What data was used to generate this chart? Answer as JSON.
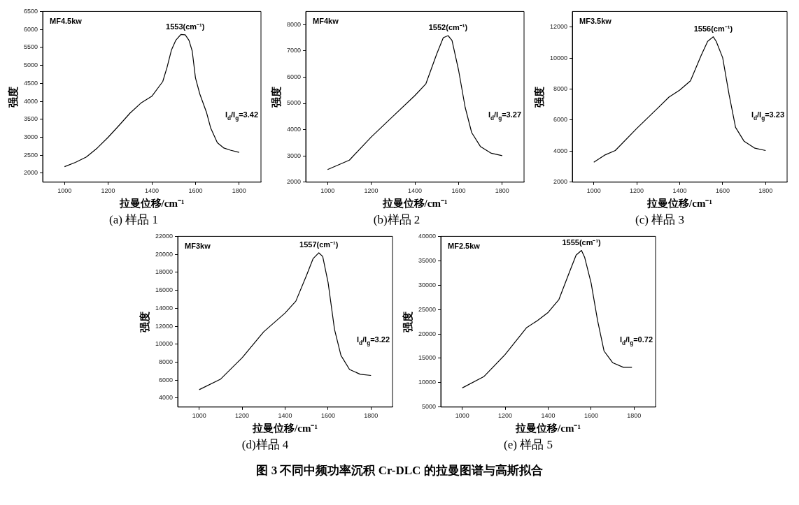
{
  "chart_data": [
    {
      "type": "line",
      "title": "(a) 样品 1",
      "xlabel": "拉曼位移/cm⁻¹",
      "ylabel": "强度",
      "color": "#000000",
      "marker": "none",
      "grid": false,
      "x": [
        1000,
        1050,
        1100,
        1150,
        1200,
        1250,
        1300,
        1350,
        1400,
        1450,
        1470,
        1490,
        1510,
        1533,
        1553,
        1570,
        1585,
        1600,
        1620,
        1650,
        1670,
        1700,
        1730,
        1760,
        1800
      ],
      "values": [
        2180,
        2300,
        2450,
        2700,
        3000,
        3330,
        3670,
        3950,
        4140,
        4550,
        4950,
        5430,
        5700,
        5860,
        5850,
        5700,
        5400,
        4650,
        4200,
        3700,
        3250,
        2850,
        2700,
        2640,
        2580
      ],
      "xlim": [
        900,
        1900
      ],
      "xticks": [
        1000,
        1200,
        1400,
        1600,
        1800
      ],
      "ylim": [
        1750,
        6500
      ],
      "yticks": [
        2000,
        2500,
        3000,
        3500,
        4000,
        4500,
        5000,
        5500,
        6000,
        6500
      ],
      "annotations": [
        "MF4.5kw",
        "I$_{d}$/I$_{g}$=3.42",
        {
          "text": "1553(cm⁻¹)",
          "x": 1553,
          "y": 5850
        }
      ]
    },
    {
      "type": "line",
      "title": "(b)样品 2",
      "xlabel": "拉曼位移/cm⁻¹",
      "ylabel": "强度",
      "color": "#000000",
      "marker": "none",
      "grid": false,
      "x": [
        1000,
        1100,
        1200,
        1300,
        1400,
        1450,
        1500,
        1530,
        1552,
        1570,
        1600,
        1630,
        1660,
        1700,
        1750,
        1800
      ],
      "values": [
        2480,
        2840,
        3720,
        4510,
        5300,
        5740,
        6880,
        7500,
        7580,
        7400,
        6270,
        4860,
        3890,
        3360,
        3100,
        3010
      ],
      "xlim": [
        900,
        1900
      ],
      "xticks": [
        1000,
        1200,
        1400,
        1600,
        1800
      ],
      "ylim": [
        2000,
        8500
      ],
      "yticks": [
        2000,
        3000,
        4000,
        5000,
        6000,
        7000,
        8000
      ],
      "annotations": [
        "MF4kw",
        "I$_{d}$/I$_{g}$=3.27",
        {
          "text": "1552(cm⁻¹)",
          "x": 1552,
          "y": 7580
        }
      ]
    },
    {
      "type": "line",
      "title": "(c) 样品 3",
      "xlabel": "拉曼位移/cm⁻¹",
      "ylabel": "强度",
      "color": "#000000",
      "marker": "none",
      "grid": false,
      "x": [
        1000,
        1050,
        1100,
        1200,
        1300,
        1350,
        1400,
        1450,
        1500,
        1530,
        1556,
        1570,
        1600,
        1630,
        1660,
        1700,
        1750,
        1800
      ],
      "values": [
        3290,
        3740,
        4040,
        5460,
        6800,
        7480,
        7930,
        8530,
        10170,
        11070,
        11370,
        11070,
        10020,
        7630,
        5530,
        4630,
        4190,
        4040
      ],
      "xlim": [
        900,
        1900
      ],
      "xticks": [
        1000,
        1200,
        1400,
        1600,
        1800
      ],
      "ylim": [
        2000,
        13000
      ],
      "yticks": [
        2000,
        4000,
        6000,
        8000,
        10000,
        12000
      ],
      "annotations": [
        "MF3.5kw",
        "I$_{d}$/I$_{g}$=3.23",
        {
          "text": "1556(cm⁻¹)",
          "x": 1556,
          "y": 11370
        }
      ]
    },
    {
      "type": "line",
      "title": "(d)样品 4",
      "xlabel": "拉曼位移/cm⁻¹",
      "ylabel": "强度",
      "color": "#000000",
      "marker": "none",
      "grid": false,
      "x": [
        1000,
        1100,
        1200,
        1300,
        1400,
        1450,
        1500,
        1530,
        1557,
        1575,
        1600,
        1630,
        1660,
        1700,
        1750,
        1800
      ],
      "values": [
        4940,
        6120,
        8490,
        11370,
        13470,
        14790,
        17670,
        19510,
        20170,
        19770,
        16880,
        11640,
        8750,
        7180,
        6650,
        6520
      ],
      "xlim": [
        900,
        1900
      ],
      "xticks": [
        1000,
        1200,
        1400,
        1600,
        1800
      ],
      "ylim": [
        3000,
        22000
      ],
      "yticks": [
        4000,
        6000,
        8000,
        10000,
        12000,
        14000,
        16000,
        18000,
        20000,
        22000
      ],
      "annotations": [
        "MF3kw",
        "I$_{d}$/I$_{g}$=3.22",
        {
          "text": "1557(cm⁻¹)",
          "x": 1557,
          "y": 20170
        }
      ]
    },
    {
      "type": "line",
      "title": "(e) 样品 5",
      "xlabel": "拉曼位移/cm⁻¹",
      "ylabel": "强度",
      "color": "#000000",
      "marker": "none",
      "grid": false,
      "x": [
        1000,
        1100,
        1200,
        1300,
        1350,
        1400,
        1450,
        1500,
        1530,
        1555,
        1570,
        1600,
        1630,
        1660,
        1700,
        1750,
        1790
      ],
      "values": [
        8930,
        11230,
        15790,
        21300,
        22740,
        24420,
        27050,
        32800,
        36160,
        37120,
        35680,
        30410,
        22740,
        16500,
        14110,
        13150,
        13150
      ],
      "xlim": [
        900,
        1900
      ],
      "xticks": [
        1000,
        1200,
        1400,
        1600,
        1800
      ],
      "ylim": [
        5000,
        40000
      ],
      "yticks": [
        5000,
        10000,
        15000,
        20000,
        25000,
        30000,
        35000,
        40000
      ],
      "annotations": [
        "MF2.5kw",
        "I$_{d}$/I$_{g}$=0.72",
        {
          "text": "1555(cm⁻¹)",
          "x": 1555,
          "y": 37120
        }
      ]
    },
    {
      "type": "other",
      "title": "图 3 不同中频功率沉积 Cr-DLC 的拉曼图谱与高斯拟合"
    }
  ]
}
